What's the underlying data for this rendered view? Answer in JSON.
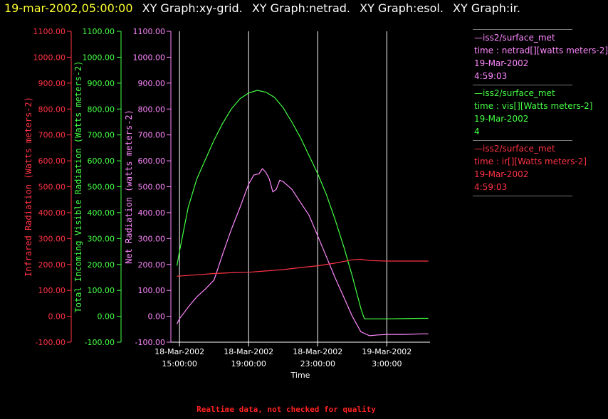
{
  "header": {
    "timestamp": "19-mar-2002,05:00:00",
    "graphs": [
      "XY Graph:xy-grid.",
      "XY Graph:netrad.",
      "XY Graph:esol.",
      "XY Graph:ir."
    ]
  },
  "colors": {
    "ir": "#ff3344",
    "vis": "#44ff44",
    "netrad": "#ff88ff",
    "grid": "#ffffff",
    "time_axis": "#ffffff",
    "footer": "#ff2222"
  },
  "chart_data": {
    "type": "line",
    "xlabel": "Time",
    "x_ticks": [
      "18-Mar-2002 15:00:00",
      "18-Mar-2002 19:00:00",
      "18-Mar-2002 23:00:00",
      "19-Mar-2002 3:00:00"
    ],
    "xlim": [
      "18-Mar-2002 15:00:00",
      "19-Mar-2002 5:00:00"
    ],
    "grid": "vertical lines at each time tick",
    "axes": [
      {
        "id": "ir",
        "label": "Infrared Radiation (Watts meters-2)",
        "ylim": [
          -100,
          1100
        ]
      },
      {
        "id": "vis",
        "label": "Total Incoming Visible Radiation (Watts meters-2)",
        "ylim": [
          -100,
          1100
        ]
      },
      {
        "id": "netrad",
        "label": "Net Radiation (watts meters-2)",
        "ylim": [
          -100,
          1100
        ]
      }
    ],
    "y_ticks": [
      "1100.00",
      "1000.00",
      "900.00",
      "800.00",
      "700.00",
      "600.00",
      "500.00",
      "400.00",
      "300.00",
      "200.00",
      "100.00",
      "0.00",
      "-100.00"
    ],
    "series": [
      {
        "id": "vis",
        "x": [
          14.85,
          15.0,
          15.5,
          16.0,
          16.5,
          17.0,
          17.5,
          18.0,
          18.5,
          19.0,
          19.5,
          20.0,
          20.5,
          21.0,
          21.5,
          22.0,
          22.5,
          23.0,
          23.5,
          24.0,
          24.5,
          25.0,
          25.5,
          25.7,
          26.0,
          27.0,
          28.0,
          29.0,
          29.4
        ],
        "y": [
          195,
          250,
          420,
          530,
          605,
          680,
          745,
          800,
          840,
          862,
          872,
          865,
          845,
          805,
          750,
          690,
          620,
          550,
          470,
          375,
          270,
          155,
          30,
          -10,
          -10,
          -10,
          -9,
          -8,
          -8
        ]
      },
      {
        "id": "netrad",
        "x": [
          14.85,
          15.0,
          15.5,
          16.0,
          16.5,
          17.0,
          17.5,
          18.0,
          18.5,
          19.0,
          19.3,
          19.6,
          19.8,
          20.0,
          20.2,
          20.4,
          20.6,
          20.8,
          21.0,
          21.5,
          22.0,
          22.5,
          23.0,
          23.5,
          24.0,
          24.5,
          25.0,
          25.5,
          26.0,
          26.5,
          27.0,
          28.0,
          29.0,
          29.4
        ],
        "y": [
          -30,
          -10,
          35,
          75,
          105,
          140,
          240,
          335,
          420,
          510,
          545,
          550,
          570,
          555,
          530,
          480,
          490,
          525,
          520,
          490,
          440,
          390,
          310,
          230,
          150,
          75,
          0,
          -60,
          -75,
          -72,
          -70,
          -70,
          -68,
          -68
        ]
      },
      {
        "id": "ir",
        "x": [
          14.85,
          15.0,
          16.0,
          17.0,
          18.0,
          19.0,
          20.0,
          21.0,
          22.0,
          23.0,
          24.0,
          25.0,
          25.5,
          26.0,
          27.0,
          28.0,
          29.0,
          29.4
        ],
        "y": [
          155,
          155,
          160,
          165,
          168,
          170,
          175,
          180,
          188,
          195,
          205,
          218,
          220,
          215,
          213,
          213,
          213,
          213
        ]
      }
    ]
  },
  "legend": [
    {
      "id": "netrad",
      "lines": [
        "—iss2/surface_met",
        "time : netrad[][watts meters-2]",
        "19-Mar-2002",
        "4:59:03"
      ]
    },
    {
      "id": "vis",
      "lines": [
        "—iss2/surface_met",
        "time : vis[][Watts meters-2]",
        "19-Mar-2002",
        "4"
      ]
    },
    {
      "id": "ir",
      "lines": [
        "—iss2/surface_met",
        "time : ir[][Watts meters-2]",
        "19-Mar-2002",
        "4:59:03"
      ]
    }
  ],
  "footer": "Realtime data, not checked for quality"
}
